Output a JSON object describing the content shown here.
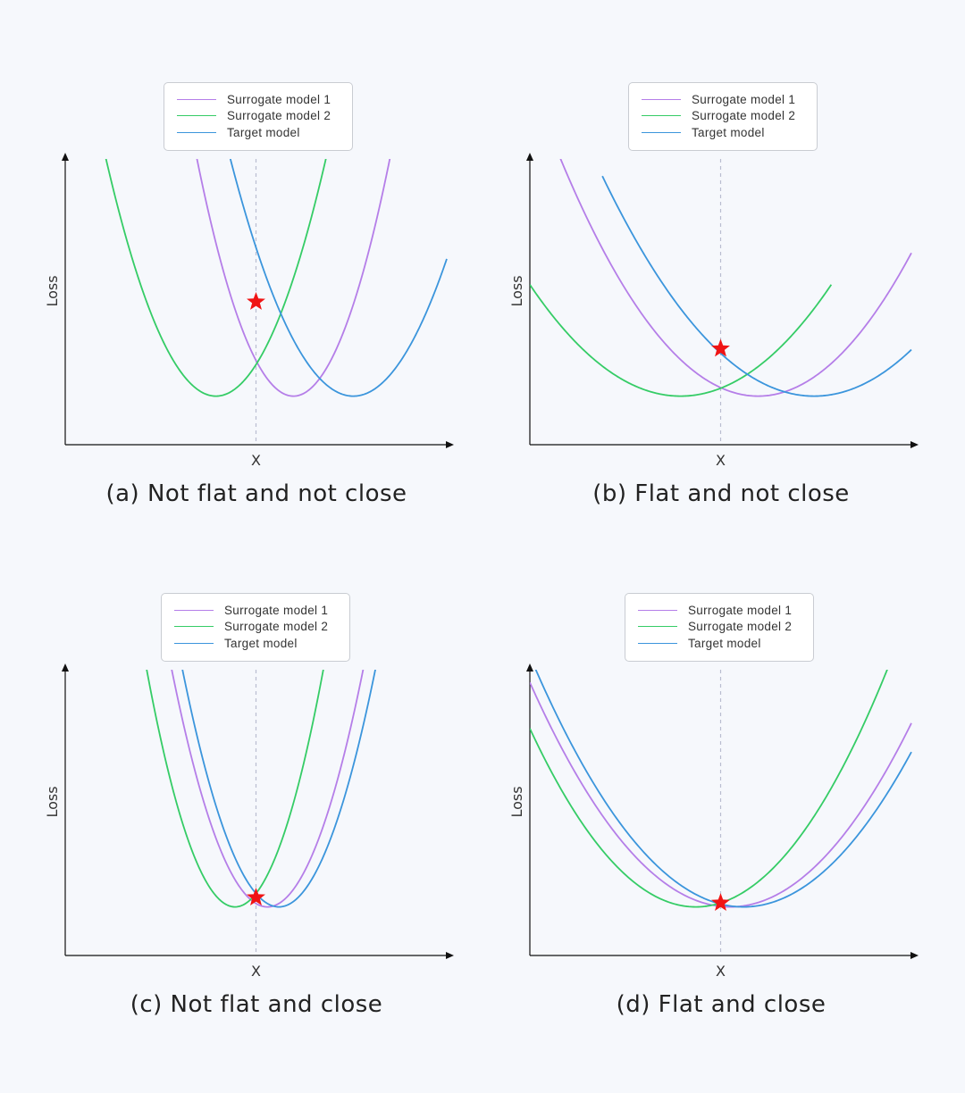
{
  "colors": {
    "surrogate_1": "#b57ee8",
    "surrogate_2": "#35cc66",
    "target": "#3b95dc",
    "star": "#f01414",
    "axis": "#111111",
    "guide": "#b9bdd0"
  },
  "chart_data": [
    {
      "type": "line",
      "panel_id": "a",
      "caption": "(a) Not flat and not close",
      "xlabel": "X",
      "ylabel": "Loss",
      "xlim": [
        0,
        10
      ],
      "ylim": [
        0,
        10
      ],
      "grid": false,
      "legend_position": "top-center",
      "legend": [
        "Surrogate model 1",
        "Surrogate model 2",
        "Target model"
      ],
      "x_reference": 5.0,
      "series": [
        {
          "name": "Surrogate model 1",
          "color_key": "surrogate_1",
          "vertex": [
            5.98,
            1.7
          ],
          "curvature": 1.3,
          "x_range": [
            2.05,
            10.0
          ]
        },
        {
          "name": "Surrogate model 2",
          "color_key": "surrogate_2",
          "vertex": [
            3.95,
            1.7
          ],
          "curvature": 1.0,
          "x_range": [
            0.0,
            7.9
          ]
        },
        {
          "name": "Target model",
          "color_key": "target",
          "vertex": [
            7.55,
            1.7
          ],
          "curvature": 0.8,
          "x_range": [
            3.55,
            10.0
          ]
        }
      ],
      "star": {
        "x": 5.0,
        "y": 5.0
      }
    },
    {
      "type": "line",
      "panel_id": "b",
      "caption": "(b) Flat and not close",
      "xlabel": "X",
      "ylabel": "Loss",
      "xlim": [
        0,
        10
      ],
      "ylim": [
        0,
        10
      ],
      "grid": false,
      "legend_position": "top-center",
      "legend": [
        "Surrogate model 1",
        "Surrogate model 2",
        "Target model"
      ],
      "x_reference": 5.0,
      "series": [
        {
          "name": "Surrogate model 1",
          "color_key": "surrogate_1",
          "vertex": [
            5.98,
            1.7
          ],
          "curvature": 0.31,
          "x_range": [
            0.4,
            10.0
          ]
        },
        {
          "name": "Surrogate model 2",
          "color_key": "surrogate_2",
          "vertex": [
            3.95,
            1.7
          ],
          "curvature": 0.25,
          "x_range": [
            0.0,
            7.9
          ]
        },
        {
          "name": "Target model",
          "color_key": "target",
          "vertex": [
            7.45,
            1.7
          ],
          "curvature": 0.25,
          "x_range": [
            1.9,
            10.0
          ]
        }
      ],
      "star": {
        "x": 5.0,
        "y": 3.36
      }
    },
    {
      "type": "line",
      "panel_id": "c",
      "caption": "(c) Not flat and close",
      "xlabel": "X",
      "ylabel": "Loss",
      "xlim": [
        0,
        10
      ],
      "ylim": [
        0,
        10
      ],
      "grid": false,
      "legend_position": "top-center",
      "legend": [
        "Surrogate model 1",
        "Surrogate model 2",
        "Target model"
      ],
      "x_reference": 5.0,
      "series": [
        {
          "name": "Surrogate model 1",
          "color_key": "surrogate_1",
          "vertex": [
            5.3,
            1.7
          ],
          "curvature": 1.32,
          "x_range": [
            1.5,
            10.0
          ]
        },
        {
          "name": "Surrogate model 2",
          "color_key": "surrogate_2",
          "vertex": [
            4.45,
            1.7
          ],
          "curvature": 1.55,
          "x_range": [
            0.0,
            10.0
          ]
        },
        {
          "name": "Target model",
          "color_key": "target",
          "vertex": [
            5.6,
            1.7
          ],
          "curvature": 1.3,
          "x_range": [
            1.75,
            10.0
          ]
        }
      ],
      "star": {
        "x": 5.0,
        "y": 2.03
      }
    },
    {
      "type": "line",
      "panel_id": "d",
      "caption": "(d) Flat and close",
      "xlabel": "X",
      "ylabel": "Loss",
      "xlim": [
        0,
        10
      ],
      "ylim": [
        0,
        10
      ],
      "grid": false,
      "legend_position": "top-center",
      "legend": [
        "Surrogate model 1",
        "Surrogate model 2",
        "Target model"
      ],
      "x_reference": 5.0,
      "series": [
        {
          "name": "Surrogate model 1",
          "color_key": "surrogate_1",
          "vertex": [
            5.25,
            1.7
          ],
          "curvature": 0.285,
          "x_range": [
            0.0,
            10.0
          ]
        },
        {
          "name": "Surrogate model 2",
          "color_key": "surrogate_2",
          "vertex": [
            4.35,
            1.7
          ],
          "curvature": 0.33,
          "x_range": [
            0.0,
            10.0
          ]
        },
        {
          "name": "Target model",
          "color_key": "target",
          "vertex": [
            5.6,
            1.7
          ],
          "curvature": 0.28,
          "x_range": [
            0.12,
            10.0
          ]
        }
      ],
      "star": {
        "x": 5.0,
        "y": 1.84
      }
    }
  ]
}
